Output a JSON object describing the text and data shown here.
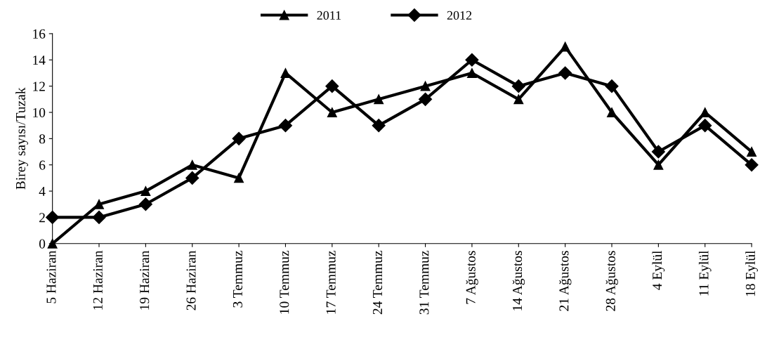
{
  "chart_data": {
    "type": "line",
    "ylabel": "Birey sayısı/Tuzak",
    "categories": [
      "5 Haziran",
      "12 Haziran",
      "19 Haziran",
      "26 Haziran",
      "3 Temmuz",
      "10 Temmuz",
      "17 Temmuz",
      "24 Temmuz",
      "31 Temmuz",
      "7 Ağustos",
      "14 Ağustos",
      "21 Ağustos",
      "28 Ağustos",
      "4 Eylül",
      "11 Eylül",
      "18 Eylül"
    ],
    "series": [
      {
        "name": "2011",
        "color": "#000000",
        "marker": "triangle",
        "values": [
          0,
          3,
          4,
          6,
          5,
          13,
          10,
          11,
          12,
          13,
          11,
          15,
          10,
          6,
          10,
          7
        ]
      },
      {
        "name": "2012",
        "color": "#000000",
        "marker": "diamond",
        "values": [
          2,
          2,
          3,
          5,
          8,
          9,
          12,
          9,
          11,
          14,
          12,
          13,
          12,
          7,
          9,
          6
        ]
      }
    ],
    "ylim": [
      0,
      16
    ],
    "yticks": [
      0,
      2,
      4,
      6,
      8,
      10,
      12,
      14,
      16
    ],
    "grid": false,
    "legend": "top",
    "line_style": "solid"
  }
}
